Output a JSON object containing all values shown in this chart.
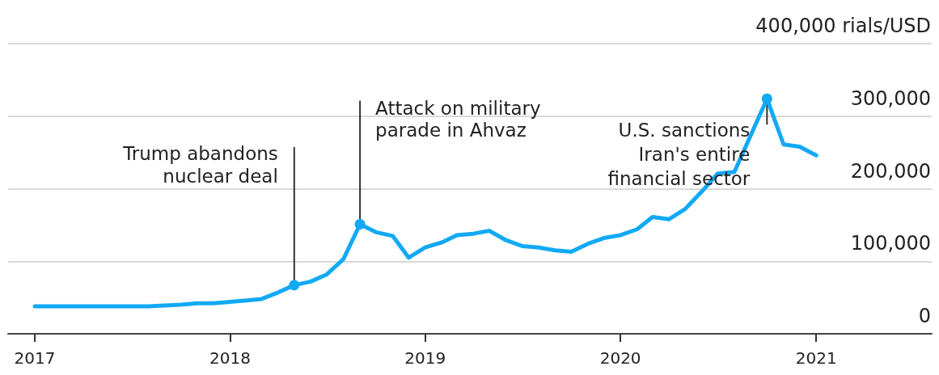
{
  "chart_data": {
    "type": "line",
    "x": [
      "2017-01",
      "2017-02",
      "2017-03",
      "2017-04",
      "2017-05",
      "2017-06",
      "2017-07",
      "2017-08",
      "2017-09",
      "2017-10",
      "2017-11",
      "2017-12",
      "2018-01",
      "2018-02",
      "2018-03",
      "2018-04",
      "2018-05",
      "2018-06",
      "2018-07",
      "2018-08",
      "2018-09",
      "2018-10",
      "2018-11",
      "2018-12",
      "2019-01",
      "2019-02",
      "2019-03",
      "2019-04",
      "2019-05",
      "2019-06",
      "2019-07",
      "2019-08",
      "2019-09",
      "2019-10",
      "2019-11",
      "2019-12",
      "2020-01",
      "2020-02",
      "2020-03",
      "2020-04",
      "2020-05",
      "2020-06",
      "2020-07",
      "2020-08",
      "2020-10",
      "2020-11",
      "2020-12",
      "2021-01"
    ],
    "series": [
      {
        "color": "#12a9f5",
        "values": [
          38000,
          38000,
          38000,
          38000,
          38000,
          38000,
          38000,
          38000,
          39000,
          40000,
          42000,
          42000,
          44000,
          46000,
          48000,
          57000,
          67000,
          72000,
          82000,
          103000,
          151000,
          140000,
          135000,
          105000,
          119000,
          126000,
          136000,
          138000,
          142000,
          129000,
          121000,
          119000,
          115000,
          113000,
          124000,
          132000,
          136000,
          144000,
          161000,
          158000,
          172000,
          196000,
          221000,
          223000,
          324000,
          261000,
          258000,
          246000
        ]
      }
    ],
    "xlim": [
      "2016-11-12",
      "2021-08-05"
    ],
    "xticks": [
      "2017",
      "2018",
      "2019",
      "2020",
      "2021"
    ],
    "ylim": [
      0,
      400000
    ],
    "yticks": [
      0,
      {
        "value": 100000,
        "label": "100,000"
      },
      {
        "value": 200000,
        "label": "200,000"
      },
      {
        "value": 300000,
        "label": "300,000"
      },
      {
        "value": 400000,
        "label": "400,000 rials/USD"
      }
    ],
    "grid": "y",
    "annotations": [
      {
        "text": "Trump abandons\nnuclear deal",
        "x": "2018-05",
        "y": 67000
      },
      {
        "text": "Attack on military\nparade in Ahvaz",
        "x": "2018-09",
        "y": 151000
      },
      {
        "text": "U.S. sanctions\nIran's entire\nfinancial sector",
        "x": "2020-10",
        "y": 324000
      }
    ]
  }
}
